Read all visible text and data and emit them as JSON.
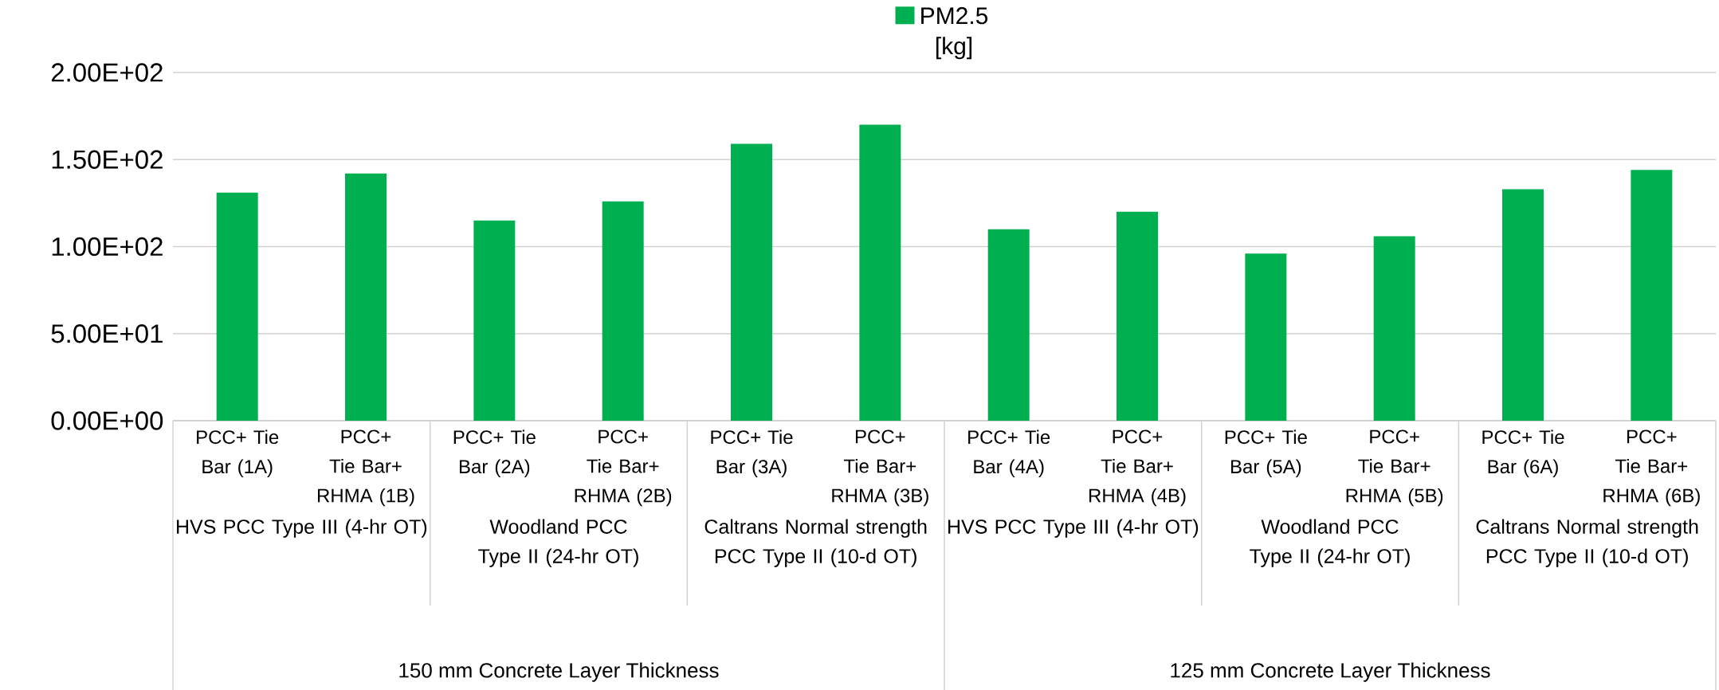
{
  "chart_data": {
    "type": "bar",
    "categories": [
      "PCC+ Tie Bar (1A)",
      "PCC+ Tie Bar+ RHMA (1B)",
      "PCC+ Tie Bar (2A)",
      "PCC+ Tie Bar+ RHMA (2B)",
      "PCC+ Tie Bar (3A)",
      "PCC+ Tie Bar+ RHMA (3B)",
      "PCC+ Tie Bar (4A)",
      "PCC+ Tie Bar+ RHMA (4B)",
      "PCC+ Tie Bar (5A)",
      "PCC+ Tie Bar+ RHMA (5B)",
      "PCC+ Tie Bar (6A)",
      "PCC+ Tie Bar+ RHMA (6B)"
    ],
    "series": [
      {
        "name": "PM2.5 [kg]",
        "color": "#00b050",
        "values": [
          131,
          142,
          115,
          126,
          159,
          170,
          110,
          120,
          96,
          106,
          133,
          144
        ]
      }
    ],
    "annotations": [
      "HVS PCC Type III (4-hr OT)",
      "Woodland PCC Type II (24-hr OT)",
      "Caltrans Normal strength PCC Type II (10-d OT)",
      "HVS PCC Type III (4-hr OT)",
      "Woodland PCC Type II (24-hr OT)",
      "Caltrans Normal strength PCC Type II (10-d OT)",
      "150 mm Concrete Layer Thickness",
      "125 mm Concrete Layer Thickness"
    ],
    "ylim": [
      0,
      200
    ],
    "yticks": [
      {
        "value": 0,
        "label": "0.00E+00"
      },
      {
        "value": 50,
        "label": "5.00E+01"
      },
      {
        "value": 100,
        "label": "1.00E+02"
      },
      {
        "value": 150,
        "label": "1.50E+02"
      },
      {
        "value": 200,
        "label": "2.00E+02"
      }
    ],
    "grid": "y",
    "legend": "top"
  }
}
